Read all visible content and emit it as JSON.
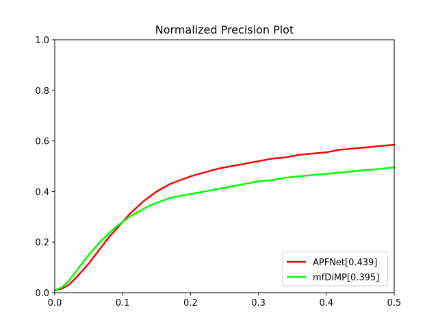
{
  "chart_data": {
    "type": "line",
    "title": "Normalized Precision Plot",
    "xlabel": "",
    "ylabel": "",
    "xlim": [
      0,
      0.5
    ],
    "ylim": [
      0,
      1
    ],
    "xticks": [
      "0.0",
      "0.1",
      "0.2",
      "0.3",
      "0.4",
      "0.5"
    ],
    "yticks": [
      "0.0",
      "0.2",
      "0.4",
      "0.6",
      "0.8",
      "1.0"
    ],
    "grid": false,
    "legend_position": "lower-right",
    "series": [
      {
        "name": "APFNet[0.439]",
        "color": "#ff0000",
        "x": [
          0,
          0.01,
          0.02,
          0.03,
          0.04,
          0.05,
          0.06,
          0.07,
          0.08,
          0.09,
          0.1,
          0.11,
          0.12,
          0.13,
          0.14,
          0.15,
          0.16,
          0.17,
          0.18,
          0.19,
          0.2,
          0.22,
          0.24,
          0.26,
          0.28,
          0.3,
          0.32,
          0.34,
          0.36,
          0.38,
          0.4,
          0.42,
          0.44,
          0.46,
          0.48,
          0.5
        ],
        "y": [
          0.01,
          0.015,
          0.03,
          0.055,
          0.085,
          0.115,
          0.15,
          0.185,
          0.22,
          0.25,
          0.28,
          0.31,
          0.335,
          0.36,
          0.38,
          0.4,
          0.415,
          0.43,
          0.44,
          0.45,
          0.46,
          0.475,
          0.49,
          0.5,
          0.51,
          0.52,
          0.53,
          0.535,
          0.545,
          0.55,
          0.555,
          0.565,
          0.57,
          0.575,
          0.58,
          0.585
        ]
      },
      {
        "name": "mfDiMP[0.395]",
        "color": "#00ff00",
        "x": [
          0,
          0.01,
          0.02,
          0.03,
          0.04,
          0.05,
          0.06,
          0.07,
          0.08,
          0.09,
          0.1,
          0.11,
          0.12,
          0.13,
          0.14,
          0.15,
          0.16,
          0.17,
          0.18,
          0.19,
          0.2,
          0.22,
          0.24,
          0.26,
          0.28,
          0.3,
          0.32,
          0.34,
          0.36,
          0.38,
          0.4,
          0.42,
          0.44,
          0.46,
          0.48,
          0.5
        ],
        "y": [
          0.01,
          0.02,
          0.045,
          0.08,
          0.115,
          0.15,
          0.18,
          0.21,
          0.235,
          0.26,
          0.28,
          0.3,
          0.315,
          0.33,
          0.345,
          0.355,
          0.365,
          0.375,
          0.38,
          0.385,
          0.39,
          0.4,
          0.41,
          0.42,
          0.43,
          0.44,
          0.445,
          0.455,
          0.46,
          0.465,
          0.47,
          0.475,
          0.48,
          0.485,
          0.49,
          0.495
        ]
      }
    ]
  }
}
